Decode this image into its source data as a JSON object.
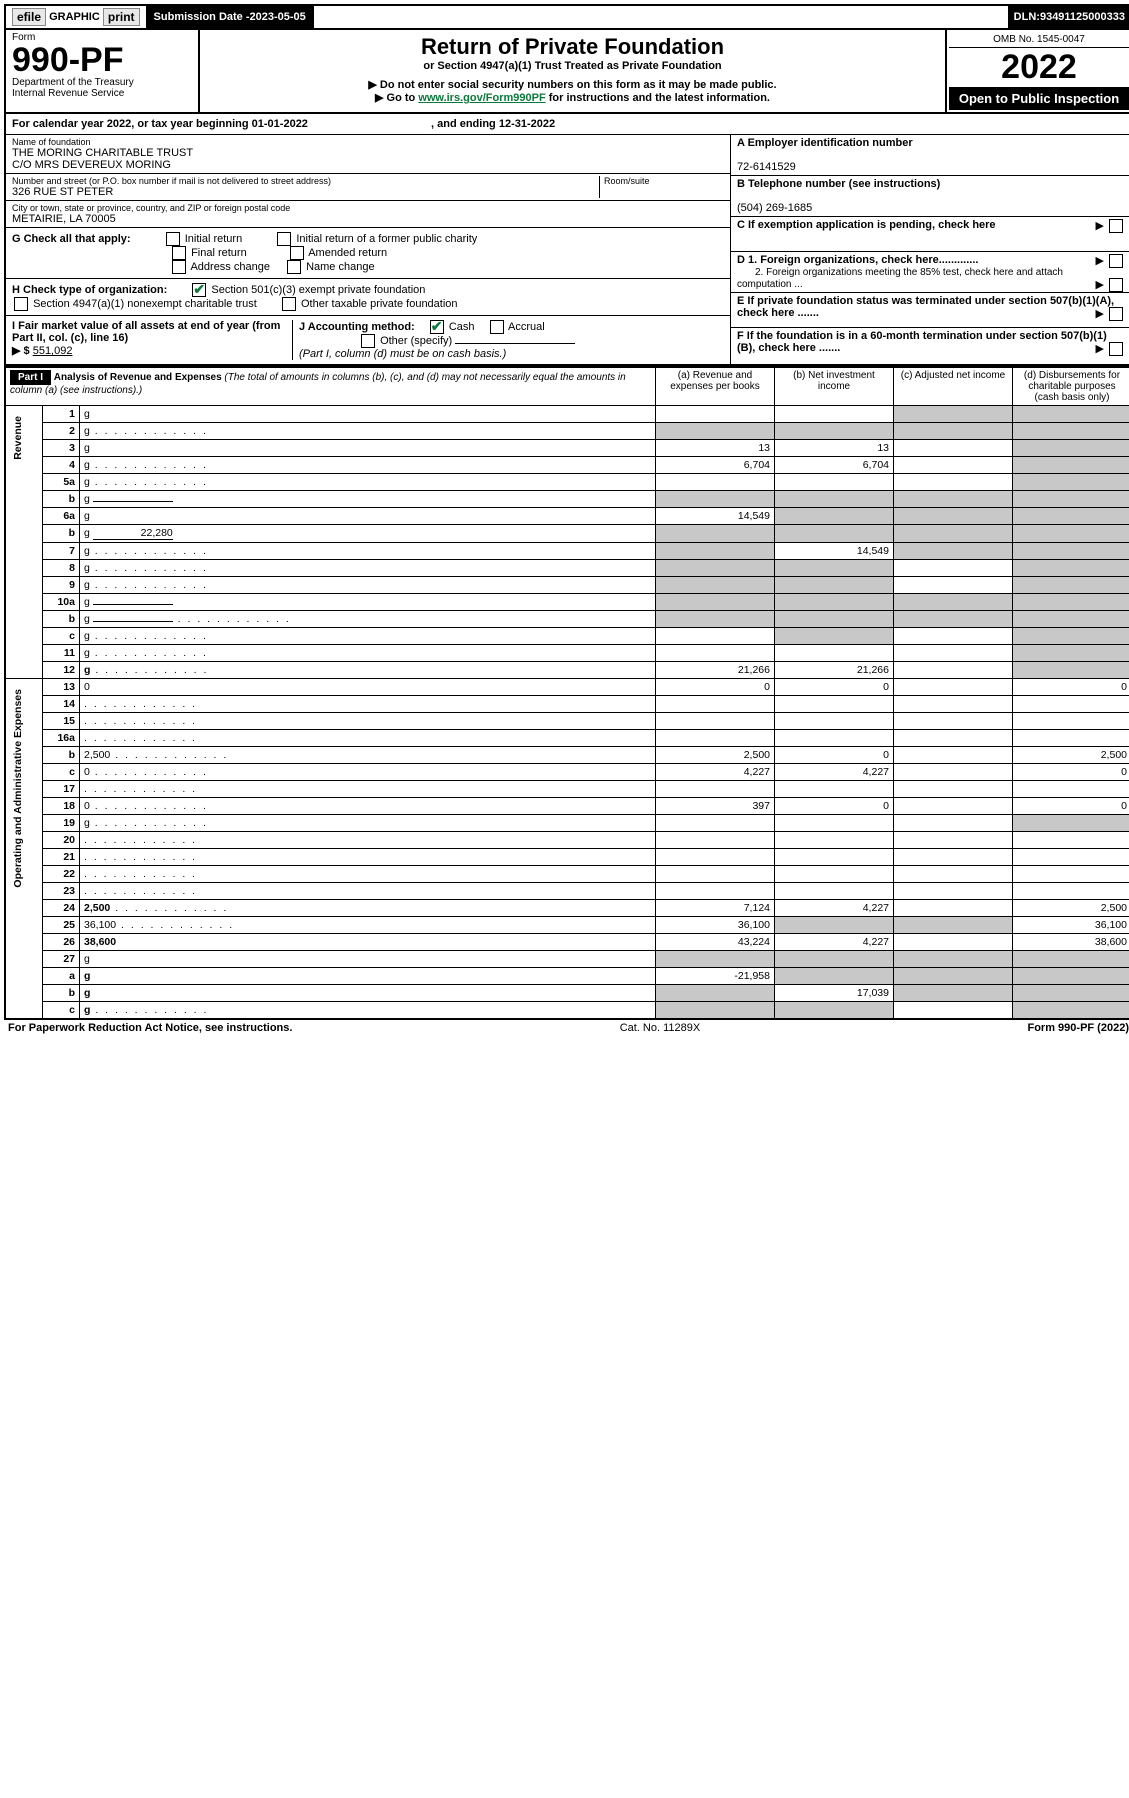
{
  "topbar": {
    "efile": "efile",
    "graphic": "GRAPHIC",
    "print": "print",
    "submission_label": "Submission Date - ",
    "submission_date": "2023-05-05",
    "dln_label": "DLN: ",
    "dln": "93491125000333"
  },
  "header": {
    "form_word": "Form",
    "form_num": "990-PF",
    "dept": "Department of the Treasury",
    "irs": "Internal Revenue Service",
    "title": "Return of Private Foundation",
    "subtitle": "or Section 4947(a)(1) Trust Treated as Private Foundation",
    "note1": "▶ Do not enter social security numbers on this form as it may be made public.",
    "note2_pre": "▶ Go to ",
    "note2_link": "www.irs.gov/Form990PF",
    "note2_post": " for instructions and the latest information.",
    "omb": "OMB No. 1545-0047",
    "year": "2022",
    "open": "Open to Public Inspection"
  },
  "taxyear": {
    "text_pre": "For calendar year 2022, or tax year beginning ",
    "begin": "01-01-2022",
    "text_mid": " , and ending ",
    "end": "12-31-2022"
  },
  "info": {
    "name_label": "Name of foundation",
    "name1": "THE MORING CHARITABLE TRUST",
    "name2": "C/O MRS DEVEREUX MORING",
    "addr_label": "Number and street (or P.O. box number if mail is not delivered to street address)",
    "addr": "326 RUE ST PETER",
    "room_label": "Room/suite",
    "city_label": "City or town, state or province, country, and ZIP or foreign postal code",
    "city": "METAIRIE, LA  70005",
    "A_label": "A Employer identification number",
    "A_val": "72-6141529",
    "B_label": "B Telephone number (see instructions)",
    "B_val": "(504) 269-1685",
    "C_label": "C If exemption application is pending, check here",
    "D1_label": "D 1. Foreign organizations, check here.............",
    "D2_label": "2. Foreign organizations meeting the 85% test, check here and attach computation ...",
    "E_label": "E  If private foundation status was terminated under section 507(b)(1)(A), check here .......",
    "F_label": "F  If the foundation is in a 60-month termination under section 507(b)(1)(B), check here .......",
    "G_label": "G Check all that apply:",
    "G_opts": [
      "Initial return",
      "Initial return of a former public charity",
      "Final return",
      "Amended return",
      "Address change",
      "Name change"
    ],
    "H_label": "H Check type of organization:",
    "H_1": "Section 501(c)(3) exempt private foundation",
    "H_2": "Section 4947(a)(1) nonexempt charitable trust",
    "H_3": "Other taxable private foundation",
    "I_label": "I Fair market value of all assets at end of year (from Part II, col. (c), line 16)",
    "I_arrow": "▶ $",
    "I_val": "551,092",
    "J_label": "J Accounting method:",
    "J_cash": "Cash",
    "J_accrual": "Accrual",
    "J_other": "Other (specify)",
    "J_note": "(Part I, column (d) must be on cash basis.)"
  },
  "part1": {
    "label": "Part I",
    "title": "Analysis of Revenue and Expenses",
    "title_note": "(The total of amounts in columns (b), (c), and (d) may not necessarily equal the amounts in column (a) (see instructions).)",
    "col_a": "(a)  Revenue and expenses per books",
    "col_b": "(b)  Net investment income",
    "col_c": "(c)  Adjusted net income",
    "col_d": "(d)  Disbursements for charitable purposes (cash basis only)",
    "side_revenue": "Revenue",
    "side_expenses": "Operating and Administrative Expenses"
  },
  "rows": [
    {
      "n": "1",
      "d": "g",
      "a": "",
      "b": "",
      "c": "g"
    },
    {
      "n": "2",
      "d": "g",
      "dots": true,
      "a": "g",
      "b": "g",
      "c": "g"
    },
    {
      "n": "3",
      "d": "g",
      "a": "13",
      "b": "13",
      "c": ""
    },
    {
      "n": "4",
      "d": "g",
      "dots": true,
      "a": "6,704",
      "b": "6,704",
      "c": ""
    },
    {
      "n": "5a",
      "d": "g",
      "dots": true,
      "a": "",
      "b": "",
      "c": ""
    },
    {
      "n": "b",
      "d": "g",
      "inline": true,
      "a": "g",
      "b": "g",
      "c": "g"
    },
    {
      "n": "6a",
      "d": "g",
      "a": "14,549",
      "b": "g",
      "c": "g"
    },
    {
      "n": "b",
      "d": "g",
      "inline": true,
      "inlineval": "22,280",
      "a": "g",
      "b": "g",
      "c": "g"
    },
    {
      "n": "7",
      "d": "g",
      "dots": true,
      "a": "g",
      "b": "14,549",
      "c": "g"
    },
    {
      "n": "8",
      "d": "g",
      "dots": true,
      "a": "g",
      "b": "g",
      "c": ""
    },
    {
      "n": "9",
      "d": "g",
      "dots": true,
      "a": "g",
      "b": "g",
      "c": ""
    },
    {
      "n": "10a",
      "d": "g",
      "inline": true,
      "a": "g",
      "b": "g",
      "c": "g"
    },
    {
      "n": "b",
      "d": "g",
      "dots": true,
      "inline": true,
      "a": "g",
      "b": "g",
      "c": "g"
    },
    {
      "n": "c",
      "d": "g",
      "dots": true,
      "a": "",
      "b": "g",
      "c": ""
    },
    {
      "n": "11",
      "d": "g",
      "dots": true,
      "a": "",
      "b": "",
      "c": ""
    },
    {
      "n": "12",
      "d": "g",
      "dots": true,
      "bold": true,
      "a": "21,266",
      "b": "21,266",
      "c": ""
    },
    {
      "n": "13",
      "d": "0",
      "a": "0",
      "b": "0",
      "c": ""
    },
    {
      "n": "14",
      "d": "",
      "dots": true,
      "a": "",
      "b": "",
      "c": ""
    },
    {
      "n": "15",
      "d": "",
      "dots": true,
      "a": "",
      "b": "",
      "c": ""
    },
    {
      "n": "16a",
      "d": "",
      "dots": true,
      "a": "",
      "b": "",
      "c": ""
    },
    {
      "n": "b",
      "d": "2,500",
      "dots": true,
      "a": "2,500",
      "b": "0",
      "c": ""
    },
    {
      "n": "c",
      "d": "0",
      "dots": true,
      "a": "4,227",
      "b": "4,227",
      "c": ""
    },
    {
      "n": "17",
      "d": "",
      "dots": true,
      "a": "",
      "b": "",
      "c": ""
    },
    {
      "n": "18",
      "d": "0",
      "dots": true,
      "a": "397",
      "b": "0",
      "c": ""
    },
    {
      "n": "19",
      "d": "g",
      "dots": true,
      "a": "",
      "b": "",
      "c": ""
    },
    {
      "n": "20",
      "d": "",
      "dots": true,
      "a": "",
      "b": "",
      "c": ""
    },
    {
      "n": "21",
      "d": "",
      "dots": true,
      "a": "",
      "b": "",
      "c": ""
    },
    {
      "n": "22",
      "d": "",
      "dots": true,
      "a": "",
      "b": "",
      "c": ""
    },
    {
      "n": "23",
      "d": "",
      "dots": true,
      "a": "",
      "b": "",
      "c": ""
    },
    {
      "n": "24",
      "d": "2,500",
      "dots": true,
      "bold": true,
      "a": "7,124",
      "b": "4,227",
      "c": ""
    },
    {
      "n": "25",
      "d": "36,100",
      "dots": true,
      "a": "36,100",
      "b": "g",
      "c": "g"
    },
    {
      "n": "26",
      "d": "38,600",
      "bold": true,
      "a": "43,224",
      "b": "4,227",
      "c": ""
    },
    {
      "n": "27",
      "d": "g",
      "a": "g",
      "b": "g",
      "c": "g"
    },
    {
      "n": "a",
      "d": "g",
      "bold": true,
      "a": "-21,958",
      "b": "g",
      "c": "g"
    },
    {
      "n": "b",
      "d": "g",
      "bold": true,
      "a": "g",
      "b": "17,039",
      "c": "g"
    },
    {
      "n": "c",
      "d": "g",
      "dots": true,
      "bold": true,
      "a": "g",
      "b": "g",
      "c": ""
    }
  ],
  "footer": {
    "left": "For Paperwork Reduction Act Notice, see instructions.",
    "mid": "Cat. No. 11289X",
    "right": "Form 990-PF (2022)"
  }
}
